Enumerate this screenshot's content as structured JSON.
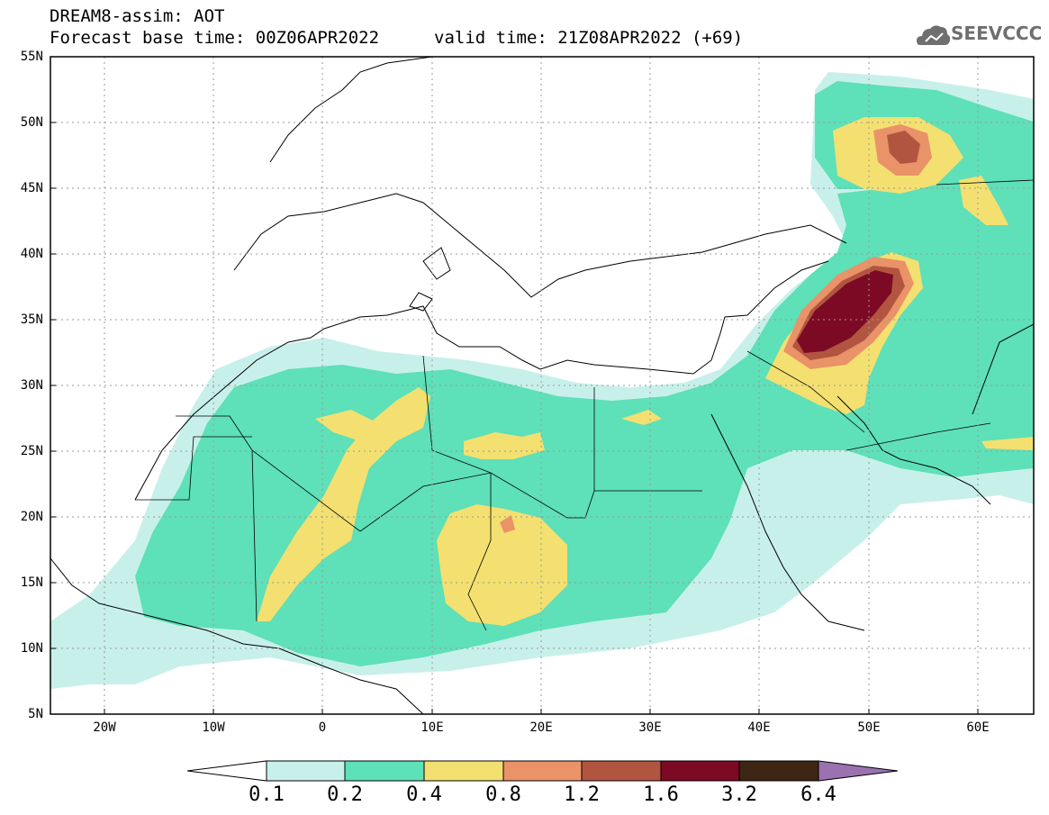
{
  "header": {
    "line1": "DREAM8-assim: AOT",
    "line2": "Forecast base time: 00Z06APR2022",
    "valid": "valid time: 21Z08APR2022 (+69)",
    "logo_text": "SEEVCCC",
    "logo_icon": "cloud-icon"
  },
  "axes": {
    "lat_labels": [
      "55N",
      "50N",
      "45N",
      "40N",
      "35N",
      "30N",
      "25N",
      "20N",
      "15N",
      "10N",
      "5N"
    ],
    "lon_labels": [
      "20W",
      "10W",
      "0",
      "10E",
      "20E",
      "30E",
      "40E",
      "50E",
      "60E"
    ],
    "lat_range": [
      5,
      55
    ],
    "lon_range": [
      -25,
      65
    ],
    "grid": true
  },
  "colorbar": {
    "levels": [
      "0.1",
      "0.2",
      "0.4",
      "0.8",
      "1.2",
      "1.6",
      "3.2",
      "6.4"
    ],
    "colors": [
      "#c8f0ea",
      "#5ee0b8",
      "#f3e070",
      "#ea9268",
      "#b25540",
      "#7d0a24",
      "#3d2614",
      "#9a72b0"
    ]
  },
  "field_regions": [
    {
      "name": "sahara-dust-belt",
      "level": "0.2-0.4"
    },
    {
      "name": "west-sahara-plume",
      "level": "0.4-0.8"
    },
    {
      "name": "chad-plume",
      "level": "0.4-0.8"
    },
    {
      "name": "caspian-plume",
      "level": "0.8-1.6"
    },
    {
      "name": "iraq-plume",
      "level": "1.6-3.2"
    }
  ]
}
